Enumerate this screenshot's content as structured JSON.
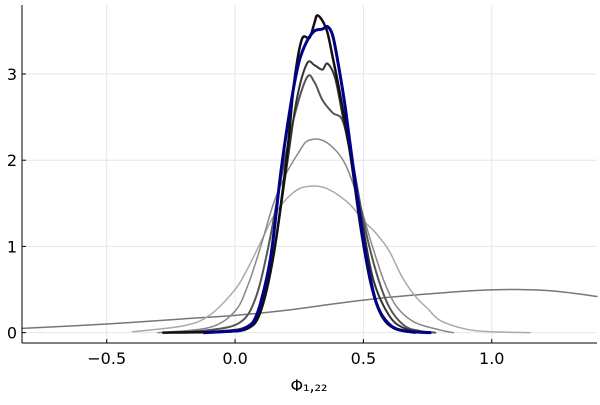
{
  "chart_data": {
    "type": "line",
    "title": "",
    "xlabel": "Φ₁,₂₂",
    "ylabel": "",
    "xlim": [
      -0.83,
      1.41
    ],
    "ylim": [
      -0.12,
      3.8
    ],
    "x_ticks": [
      -0.5,
      0.0,
      0.5,
      1.0
    ],
    "x_tick_labels": [
      "−0.5",
      "0.0",
      "0.5",
      "1.0"
    ],
    "y_ticks": [
      0,
      1,
      2,
      3
    ],
    "y_tick_labels": [
      "0",
      "1",
      "2",
      "3"
    ],
    "grid": true,
    "legend": "none",
    "series": [
      {
        "color": "#777777",
        "width": 1.5,
        "points": [
          [
            -0.83,
            0.05
          ],
          [
            -0.5,
            0.1
          ],
          [
            -0.2,
            0.16
          ],
          [
            0.0,
            0.2
          ],
          [
            0.2,
            0.26
          ],
          [
            0.4,
            0.34
          ],
          [
            0.6,
            0.41
          ],
          [
            0.8,
            0.46
          ],
          [
            0.95,
            0.49
          ],
          [
            1.1,
            0.5
          ],
          [
            1.25,
            0.48
          ],
          [
            1.41,
            0.42
          ]
        ]
      },
      {
        "color": "#aaaaaa",
        "width": 1.5,
        "points": [
          [
            -0.4,
            0.01
          ],
          [
            -0.2,
            0.08
          ],
          [
            -0.1,
            0.2
          ],
          [
            0.0,
            0.5
          ],
          [
            0.05,
            0.75
          ],
          [
            0.1,
            1.05
          ],
          [
            0.15,
            1.35
          ],
          [
            0.2,
            1.55
          ],
          [
            0.25,
            1.67
          ],
          [
            0.3,
            1.7
          ],
          [
            0.35,
            1.68
          ],
          [
            0.4,
            1.6
          ],
          [
            0.45,
            1.48
          ],
          [
            0.5,
            1.3
          ],
          [
            0.55,
            1.15
          ],
          [
            0.6,
            0.95
          ],
          [
            0.65,
            0.65
          ],
          [
            0.7,
            0.43
          ],
          [
            0.75,
            0.28
          ],
          [
            0.8,
            0.14
          ],
          [
            0.9,
            0.04
          ],
          [
            1.0,
            0.01
          ],
          [
            1.15,
            0.0
          ]
        ]
      },
      {
        "color": "#888888",
        "width": 1.5,
        "points": [
          [
            -0.3,
            0.0
          ],
          [
            -0.1,
            0.06
          ],
          [
            0.0,
            0.25
          ],
          [
            0.05,
            0.55
          ],
          [
            0.1,
            1.0
          ],
          [
            0.15,
            1.5
          ],
          [
            0.2,
            1.85
          ],
          [
            0.25,
            2.1
          ],
          [
            0.28,
            2.22
          ],
          [
            0.33,
            2.24
          ],
          [
            0.38,
            2.15
          ],
          [
            0.43,
            1.95
          ],
          [
            0.48,
            1.55
          ],
          [
            0.53,
            1.05
          ],
          [
            0.58,
            0.6
          ],
          [
            0.63,
            0.3
          ],
          [
            0.7,
            0.12
          ],
          [
            0.8,
            0.03
          ],
          [
            0.85,
            0.0
          ]
        ]
      },
      {
        "color": "#555555",
        "width": 2,
        "points": [
          [
            -0.28,
            0.0
          ],
          [
            -0.1,
            0.03
          ],
          [
            0.02,
            0.12
          ],
          [
            0.08,
            0.4
          ],
          [
            0.13,
            1.0
          ],
          [
            0.18,
            1.8
          ],
          [
            0.23,
            2.5
          ],
          [
            0.28,
            2.96
          ],
          [
            0.31,
            2.9
          ],
          [
            0.34,
            2.7
          ],
          [
            0.38,
            2.55
          ],
          [
            0.42,
            2.45
          ],
          [
            0.46,
            1.95
          ],
          [
            0.5,
            1.3
          ],
          [
            0.55,
            0.7
          ],
          [
            0.6,
            0.3
          ],
          [
            0.66,
            0.08
          ],
          [
            0.72,
            0.02
          ],
          [
            0.78,
            0.0
          ]
        ]
      },
      {
        "color": "#333333",
        "width": 2,
        "points": [
          [
            -0.28,
            0.0
          ],
          [
            -0.05,
            0.02
          ],
          [
            0.05,
            0.08
          ],
          [
            0.1,
            0.3
          ],
          [
            0.15,
            0.9
          ],
          [
            0.2,
            1.9
          ],
          [
            0.24,
            2.7
          ],
          [
            0.28,
            3.12
          ],
          [
            0.31,
            3.1
          ],
          [
            0.34,
            3.05
          ],
          [
            0.36,
            3.12
          ],
          [
            0.39,
            2.95
          ],
          [
            0.42,
            2.5
          ],
          [
            0.46,
            1.9
          ],
          [
            0.5,
            1.2
          ],
          [
            0.54,
            0.6
          ],
          [
            0.6,
            0.2
          ],
          [
            0.66,
            0.05
          ],
          [
            0.75,
            0.0
          ]
        ]
      },
      {
        "color": "#111111",
        "width": 2.5,
        "points": [
          [
            -0.28,
            0.0
          ],
          [
            -0.05,
            0.01
          ],
          [
            0.05,
            0.05
          ],
          [
            0.1,
            0.25
          ],
          [
            0.15,
            0.9
          ],
          [
            0.2,
            2.0
          ],
          [
            0.23,
            2.9
          ],
          [
            0.26,
            3.4
          ],
          [
            0.29,
            3.42
          ],
          [
            0.31,
            3.6
          ],
          [
            0.32,
            3.68
          ],
          [
            0.34,
            3.62
          ],
          [
            0.36,
            3.48
          ],
          [
            0.38,
            3.2
          ],
          [
            0.41,
            2.75
          ],
          [
            0.45,
            2.05
          ],
          [
            0.49,
            1.2
          ],
          [
            0.53,
            0.55
          ],
          [
            0.57,
            0.2
          ],
          [
            0.62,
            0.05
          ],
          [
            0.7,
            0.0
          ]
        ]
      },
      {
        "color": "#00008b",
        "width": 3,
        "points": [
          [
            -0.12,
            0.0
          ],
          [
            0.0,
            0.02
          ],
          [
            0.04,
            0.05
          ],
          [
            0.07,
            0.12
          ],
          [
            0.1,
            0.35
          ],
          [
            0.14,
            0.9
          ],
          [
            0.18,
            1.9
          ],
          [
            0.22,
            2.7
          ],
          [
            0.25,
            3.15
          ],
          [
            0.28,
            3.38
          ],
          [
            0.31,
            3.5
          ],
          [
            0.34,
            3.52
          ],
          [
            0.36,
            3.55
          ],
          [
            0.38,
            3.45
          ],
          [
            0.4,
            3.15
          ],
          [
            0.43,
            2.6
          ],
          [
            0.47,
            1.7
          ],
          [
            0.51,
            0.9
          ],
          [
            0.55,
            0.35
          ],
          [
            0.6,
            0.1
          ],
          [
            0.66,
            0.02
          ],
          [
            0.76,
            0.0
          ]
        ]
      }
    ]
  }
}
